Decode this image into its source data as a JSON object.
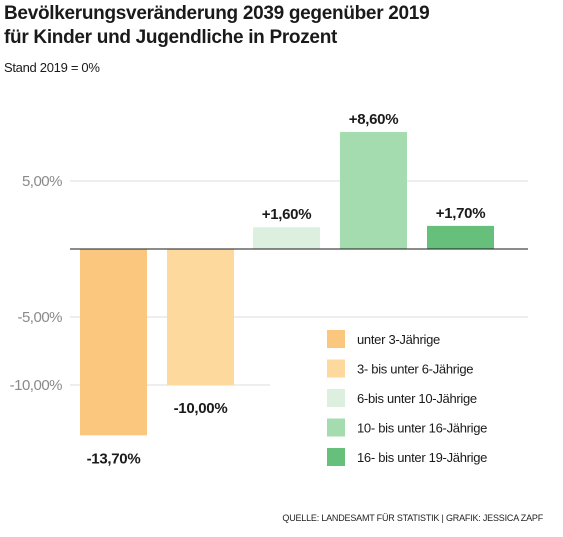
{
  "header": {
    "title_line1": "Bevölkerungsveränderung 2039 gegenüber 2019",
    "title_line2": "für Kinder und Jugendliche in Prozent",
    "subtitle": "Stand 2019 = 0%"
  },
  "footer": {
    "source": "QUELLE: LANDESAMT FÜR STATISTIK | GRAFIK: JESSICA ZAPF"
  },
  "chart_data": {
    "type": "bar",
    "title": "Bevölkerungsveränderung 2039 gegenüber 2019 für Kinder und Jugendliche in Prozent",
    "subtitle": "Stand 2019 = 0%",
    "xlabel": "",
    "ylabel": "",
    "ylim": [
      -14,
      10
    ],
    "yticks": [
      5,
      -5,
      -10
    ],
    "ytick_labels": [
      "5,00%",
      "-5,00%",
      "-10,00%"
    ],
    "grid": true,
    "legend_position": "bottom-right",
    "categories": [
      "unter 3-Jährige",
      "3- bis unter 6-Jährige",
      "6-bis unter 10-Jährige",
      "10- bis unter 16-Jährige",
      "16- bis unter 19-Jährige"
    ],
    "values": [
      -13.7,
      -10.0,
      1.6,
      8.6,
      1.7
    ],
    "value_labels": [
      "-13,70%",
      "-10,00%",
      "+1,60%",
      "+8,60%",
      "+1,70%"
    ],
    "colors": [
      "#fbc77e",
      "#fdd99d",
      "#ddf0e0",
      "#a4dcb0",
      "#66c07c"
    ]
  }
}
